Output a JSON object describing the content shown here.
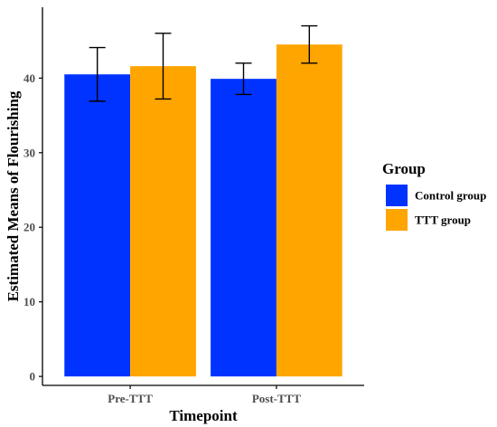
{
  "chart_data": {
    "type": "bar",
    "categories": [
      "Pre-TTT",
      "Post-TTT"
    ],
    "series": [
      {
        "name": "Control group",
        "values": [
          40.5,
          39.9
        ],
        "error_low": [
          36.9,
          37.8
        ],
        "error_high": [
          44.1,
          42.0
        ],
        "color": "#0033ff"
      },
      {
        "name": "TTT group",
        "values": [
          41.6,
          44.5
        ],
        "error_low": [
          37.2,
          42.0
        ],
        "error_high": [
          46.0,
          47.0
        ],
        "color": "#ffa500"
      }
    ],
    "xlabel": "Timepoint",
    "ylabel": "Estimated Means of Flourishing",
    "yticks": [
      0,
      10,
      20,
      30,
      40
    ],
    "ylim": [
      -1.2,
      49.5
    ],
    "legend_title": "Group",
    "legend_position": "right",
    "grid": false
  }
}
